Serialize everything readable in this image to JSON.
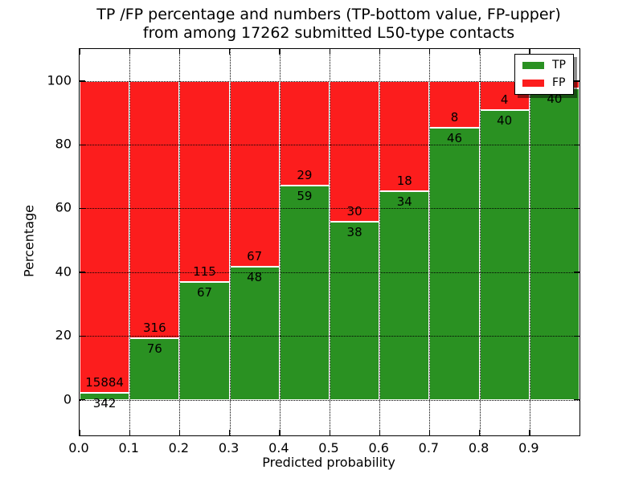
{
  "title": {
    "line1": "TP /FP percentage and numbers (TP-bottom value, FP-upper)",
    "line2": "from among 17262 submitted L50-type contacts"
  },
  "legend": {
    "tp_label": "TP",
    "fp_label": "FP"
  },
  "chart_data": {
    "type": "bar",
    "stacked": true,
    "normalized_to_percent": true,
    "title": "TP /FP percentage and numbers (TP-bottom value, FP-upper)\nfrom among 17262 submitted L50-type contacts",
    "xlabel": "Predicted probability",
    "ylabel": "Percentage",
    "xlim": [
      0.0,
      1.0
    ],
    "ylim": [
      -11.2,
      110
    ],
    "grid": "dotted",
    "legend_position": "upper right",
    "total_submitted": 17262,
    "colors": {
      "tp": "#2a9122",
      "fp": "#fc1d1d"
    },
    "x_tick_values": [
      0.0,
      0.1,
      0.2,
      0.3,
      0.4,
      0.5,
      0.6,
      0.7,
      0.8,
      0.9
    ],
    "x_tick_labels": [
      "0.0",
      "0.1",
      "0.2",
      "0.3",
      "0.4",
      "0.5",
      "0.6",
      "0.7",
      "0.8",
      "0.9"
    ],
    "y_tick_values": [
      0,
      20,
      40,
      60,
      80,
      100
    ],
    "y_tick_labels": [
      "0",
      "20",
      "40",
      "60",
      "80",
      "100"
    ],
    "x_gridline_values": [
      0.1,
      0.2,
      0.3,
      0.4,
      0.5,
      0.6,
      0.7,
      0.8,
      0.9
    ],
    "series": [
      {
        "name": "TP",
        "color": "#2a9122"
      },
      {
        "name": "FP",
        "color": "#fc1d1d"
      }
    ],
    "bins": [
      {
        "x_range": [
          0.0,
          0.1
        ],
        "tp": 342,
        "fp": 15884
      },
      {
        "x_range": [
          0.1,
          0.2
        ],
        "tp": 76,
        "fp": 316
      },
      {
        "x_range": [
          0.2,
          0.3
        ],
        "tp": 67,
        "fp": 115
      },
      {
        "x_range": [
          0.3,
          0.4
        ],
        "tp": 48,
        "fp": 67
      },
      {
        "x_range": [
          0.4,
          0.5
        ],
        "tp": 59,
        "fp": 29
      },
      {
        "x_range": [
          0.5,
          0.6
        ],
        "tp": 38,
        "fp": 30
      },
      {
        "x_range": [
          0.6,
          0.7
        ],
        "tp": 34,
        "fp": 18
      },
      {
        "x_range": [
          0.7,
          0.8
        ],
        "tp": 46,
        "fp": 8
      },
      {
        "x_range": [
          0.8,
          0.9
        ],
        "tp": 40,
        "fp": 4
      },
      {
        "x_range": [
          0.9,
          1.0
        ],
        "tp": 40,
        "fp": 1,
        "fp_label_hidden": true
      }
    ]
  }
}
